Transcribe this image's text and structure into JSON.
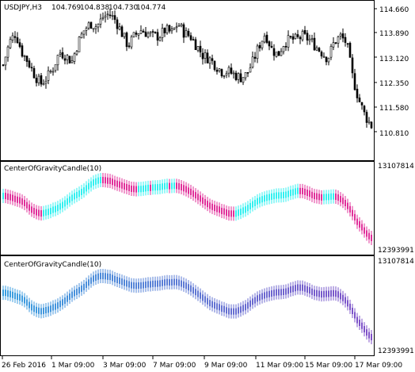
{
  "main_panel": {
    "symbol_label": "USDJPY,H3",
    "ohlc_values": [
      "104.769",
      "104.838",
      "104.730",
      "104.774"
    ],
    "price_ticks": [
      "114.660",
      "113.890",
      "113.120",
      "112.350",
      "111.580",
      "110.810"
    ]
  },
  "indicator_panel_1": {
    "label": "CenterOfGravityCandle(10)",
    "scale_top": "13107814",
    "scale_bottom": "12393991"
  },
  "indicator_panel_2": {
    "label": "CenterOfGravityCandle(10)",
    "scale_top": "13107814",
    "scale_bottom": "12393991"
  },
  "time_axis": {
    "labels": [
      "26 Feb 2016",
      "1 Mar 09:00",
      "3 Mar 09:00",
      "7 Mar 09:00",
      "9 Mar 09:00",
      "11 Mar 09:00",
      "15 Mar 09:00",
      "17 Mar 09:00"
    ]
  },
  "colors": {
    "background": "#ffffff",
    "frame": "#000000",
    "bull_cog": "#33f0f0",
    "bear_cog": "#e0309a",
    "gradient_low": "#3aa0e0",
    "gradient_high": "#8050c8"
  },
  "chart_data": {
    "type": "candlestick",
    "y_range": [
      110.81,
      114.66
    ],
    "ohlc_close_path": [
      112.9,
      113.6,
      113.9,
      113.3,
      113.0,
      112.6,
      112.3,
      112.5,
      112.8,
      113.3,
      113.2,
      113.0,
      113.6,
      114.0,
      114.2,
      114.1,
      114.4,
      114.5,
      114.3,
      113.9,
      113.5,
      113.8,
      114.0,
      113.9,
      113.8,
      113.8,
      114.0,
      113.9,
      114.2,
      113.9,
      113.8,
      113.5,
      113.2,
      113.1,
      112.9,
      112.7,
      112.7,
      112.6,
      112.5,
      112.6,
      113.0,
      113.5,
      113.9,
      113.4,
      113.2,
      113.6,
      113.7,
      113.7,
      113.8,
      113.7,
      113.5,
      113.3,
      113.1,
      113.6,
      113.8,
      113.6,
      112.5,
      111.8,
      111.3,
      111.0
    ]
  }
}
